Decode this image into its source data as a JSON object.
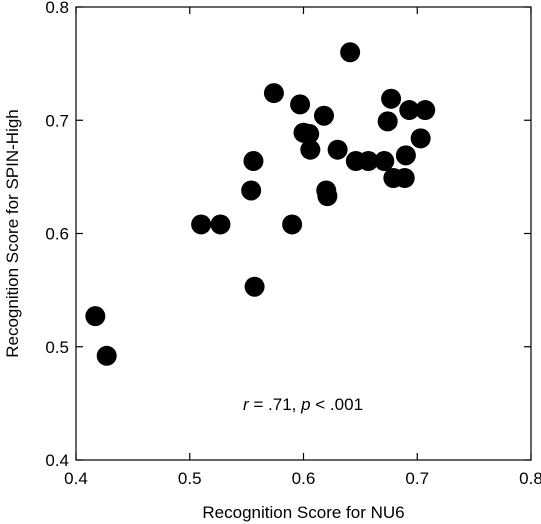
{
  "chart_data": {
    "type": "scatter",
    "xlabel": "Recognition Score for NU6",
    "ylabel": "Recognition Score for SPIN-High",
    "xlim": [
      0.4,
      0.8
    ],
    "ylim": [
      0.4,
      0.8
    ],
    "xticks": [
      "0.4",
      "0.5",
      "0.6",
      "0.7",
      "0.8"
    ],
    "yticks": [
      "0.4",
      "0.5",
      "0.6",
      "0.7",
      "0.8"
    ],
    "grid": false,
    "annotation": {
      "r_symbol": "r",
      "r_text": " = .71, ",
      "p_symbol": "p",
      "p_text": " < .001"
    },
    "color": "#000000",
    "points": [
      {
        "x": 0.417,
        "y": 0.527
      },
      {
        "x": 0.427,
        "y": 0.492
      },
      {
        "x": 0.51,
        "y": 0.608
      },
      {
        "x": 0.527,
        "y": 0.608
      },
      {
        "x": 0.554,
        "y": 0.638
      },
      {
        "x": 0.556,
        "y": 0.664
      },
      {
        "x": 0.557,
        "y": 0.553
      },
      {
        "x": 0.574,
        "y": 0.724
      },
      {
        "x": 0.59,
        "y": 0.608
      },
      {
        "x": 0.597,
        "y": 0.714
      },
      {
        "x": 0.6,
        "y": 0.689
      },
      {
        "x": 0.605,
        "y": 0.688
      },
      {
        "x": 0.606,
        "y": 0.674
      },
      {
        "x": 0.618,
        "y": 0.704
      },
      {
        "x": 0.62,
        "y": 0.638
      },
      {
        "x": 0.621,
        "y": 0.633
      },
      {
        "x": 0.63,
        "y": 0.674
      },
      {
        "x": 0.641,
        "y": 0.76
      },
      {
        "x": 0.646,
        "y": 0.664
      },
      {
        "x": 0.657,
        "y": 0.664
      },
      {
        "x": 0.671,
        "y": 0.664
      },
      {
        "x": 0.674,
        "y": 0.699
      },
      {
        "x": 0.677,
        "y": 0.719
      },
      {
        "x": 0.679,
        "y": 0.649
      },
      {
        "x": 0.689,
        "y": 0.649
      },
      {
        "x": 0.69,
        "y": 0.669
      },
      {
        "x": 0.693,
        "y": 0.709
      },
      {
        "x": 0.703,
        "y": 0.684
      },
      {
        "x": 0.707,
        "y": 0.709
      }
    ]
  }
}
